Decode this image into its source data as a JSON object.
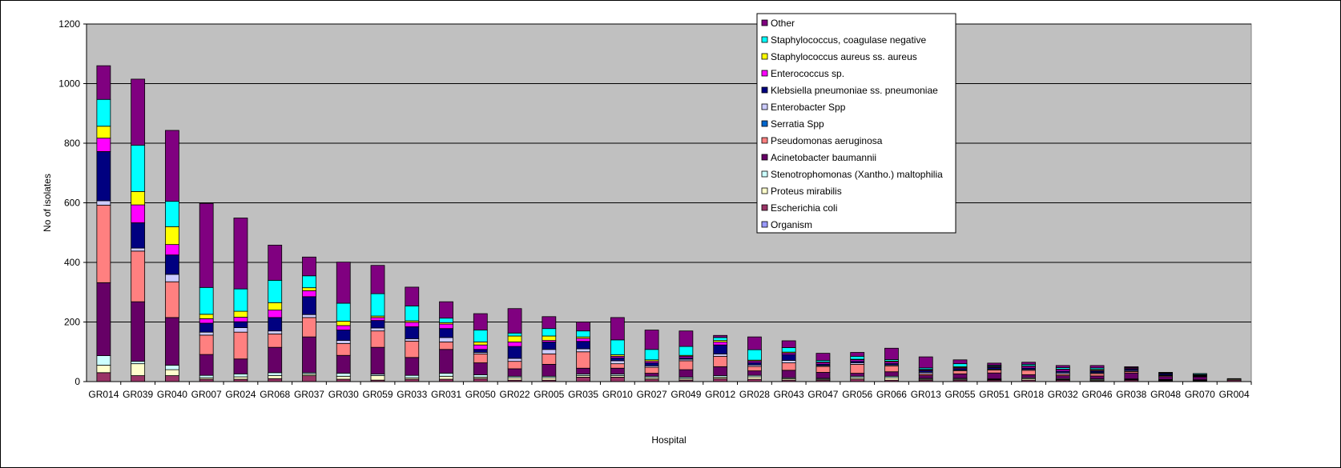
{
  "chart_data": {
    "type": "bar",
    "stacked": true,
    "xlabel": "Hospital",
    "ylabel": "No of isolates",
    "ylim": [
      0,
      1200
    ],
    "yticks": [
      0,
      200,
      400,
      600,
      800,
      1000,
      1200
    ],
    "grid": true,
    "legend_position": "top-right",
    "categories": [
      "GR014",
      "GR039",
      "GR040",
      "GR007",
      "GR024",
      "GR068",
      "GR037",
      "GR030",
      "GR059",
      "GR033",
      "GR031",
      "GR050",
      "GR022",
      "GR005",
      "GR035",
      "GR010",
      "GR027",
      "GR049",
      "GR012",
      "GR028",
      "GR043",
      "GR047",
      "GR056",
      "GR066",
      "GR013",
      "GR055",
      "GR051",
      "GR018",
      "GR032",
      "GR046",
      "GR038",
      "GR048",
      "GR070",
      "GR004"
    ],
    "series": [
      {
        "name": "Escherichia coli",
        "color": "#993366",
        "values": [
          30,
          20,
          20,
          8,
          8,
          10,
          20,
          8,
          5,
          8,
          8,
          10,
          5,
          5,
          15,
          15,
          8,
          5,
          10,
          8,
          5,
          5,
          8,
          5,
          5,
          5,
          5,
          5,
          5,
          3,
          5,
          3,
          2,
          5
        ]
      },
      {
        "name": "Proteus mirabilis",
        "color": "#FFFFCC",
        "values": [
          25,
          40,
          20,
          5,
          8,
          10,
          5,
          10,
          15,
          5,
          10,
          5,
          8,
          8,
          5,
          5,
          5,
          5,
          5,
          8,
          5,
          3,
          5,
          8,
          3,
          3,
          2,
          5,
          2,
          3,
          2,
          2,
          2,
          3
        ]
      },
      {
        "name": "Stenotrophomonas (Xantho.) maltophilia",
        "color": "#CCFFFF",
        "values": [
          32,
          8,
          15,
          8,
          10,
          10,
          5,
          10,
          5,
          8,
          10,
          8,
          5,
          5,
          5,
          5,
          5,
          5,
          5,
          5,
          3,
          3,
          5,
          5,
          3,
          3,
          2,
          3,
          3,
          3,
          2,
          2,
          2,
          0
        ]
      },
      {
        "name": "Acinetobacter baumannii",
        "color": "#660066",
        "values": [
          245,
          200,
          160,
          70,
          50,
          85,
          120,
          60,
          90,
          60,
          80,
          40,
          25,
          40,
          20,
          20,
          10,
          25,
          30,
          15,
          25,
          20,
          10,
          15,
          10,
          15,
          20,
          10,
          10,
          10,
          20,
          10,
          10,
          0
        ]
      },
      {
        "name": "Pseudomonas aeruginosa",
        "color": "#FF8080",
        "values": [
          260,
          170,
          120,
          65,
          90,
          45,
          65,
          40,
          55,
          55,
          25,
          30,
          25,
          35,
          55,
          15,
          20,
          30,
          35,
          15,
          25,
          20,
          30,
          20,
          5,
          10,
          10,
          15,
          5,
          8,
          5,
          3,
          2,
          2
        ]
      },
      {
        "name": "Serratia Spp",
        "color": "#0066CC",
        "values": [
          0,
          0,
          0,
          0,
          0,
          0,
          0,
          0,
          0,
          0,
          0,
          0,
          0,
          0,
          0,
          0,
          0,
          0,
          0,
          0,
          0,
          0,
          0,
          0,
          0,
          0,
          0,
          0,
          0,
          0,
          0,
          0,
          0,
          0
        ]
      },
      {
        "name": "Enterobacter Spp",
        "color": "#CCCCFF",
        "values": [
          15,
          10,
          25,
          10,
          15,
          10,
          10,
          10,
          10,
          8,
          15,
          5,
          10,
          15,
          10,
          10,
          5,
          5,
          8,
          5,
          8,
          3,
          5,
          3,
          5,
          3,
          3,
          3,
          5,
          3,
          3,
          2,
          2,
          0
        ]
      },
      {
        "name": "Klebsiella pneumoniae ss. pneumoniae",
        "color": "#000080",
        "values": [
          165,
          85,
          65,
          30,
          20,
          45,
          60,
          35,
          25,
          40,
          30,
          10,
          40,
          25,
          25,
          10,
          10,
          5,
          30,
          8,
          20,
          5,
          5,
          5,
          5,
          5,
          5,
          5,
          5,
          5,
          5,
          5,
          2,
          0
        ]
      },
      {
        "name": "Enterococcus sp.",
        "color": "#FF00FF",
        "values": [
          45,
          60,
          35,
          15,
          15,
          25,
          20,
          15,
          10,
          15,
          15,
          15,
          15,
          5,
          10,
          5,
          5,
          5,
          10,
          5,
          5,
          5,
          5,
          5,
          3,
          3,
          3,
          5,
          5,
          3,
          3,
          2,
          2,
          0
        ]
      },
      {
        "name": "Staphylococcus aureus ss. aureus",
        "color": "#FFFF00",
        "values": [
          40,
          45,
          60,
          15,
          20,
          25,
          10,
          15,
          5,
          5,
          5,
          10,
          20,
          15,
          5,
          5,
          5,
          3,
          5,
          3,
          3,
          2,
          2,
          3,
          2,
          3,
          2,
          2,
          2,
          3,
          2,
          2,
          0,
          0
        ]
      },
      {
        "name": "Staphylococcus, coagulase negative",
        "color": "#00FFFF",
        "values": [
          90,
          155,
          85,
          90,
          75,
          75,
          40,
          60,
          75,
          50,
          15,
          40,
          10,
          25,
          20,
          50,
          35,
          30,
          10,
          35,
          15,
          5,
          10,
          5,
          5,
          10,
          3,
          5,
          5,
          5,
          0,
          0,
          3,
          0
        ]
      },
      {
        "name": "Other",
        "color": "#800080",
        "values": [
          113,
          222,
          238,
          282,
          238,
          118,
          63,
          138,
          95,
          63,
          55,
          55,
          82,
          40,
          30,
          75,
          65,
          52,
          7,
          43,
          23,
          24,
          13,
          38,
          37,
          13,
          7,
          7,
          7,
          8,
          3,
          0,
          0,
          0
        ]
      },
      {
        "name": "Organism",
        "color": "#9999FF",
        "values": [
          0,
          0,
          0,
          0,
          0,
          0,
          0,
          0,
          0,
          0,
          0,
          0,
          0,
          0,
          0,
          0,
          0,
          0,
          0,
          0,
          0,
          0,
          0,
          0,
          0,
          0,
          0,
          0,
          0,
          0,
          0,
          0,
          0,
          0
        ]
      }
    ],
    "legend_order": [
      "Other",
      "Staphylococcus, coagulase negative",
      "Staphylococcus aureus ss. aureus",
      "Enterococcus sp.",
      "Klebsiella pneumoniae ss. pneumoniae",
      "Enterobacter Spp",
      "Serratia Spp",
      "Pseudomonas aeruginosa",
      "Acinetobacter baumannii",
      "Stenotrophomonas (Xantho.) maltophilia",
      "Proteus mirabilis",
      "Escherichia coli",
      "Organism"
    ],
    "plot_background": "#C0C0C0"
  }
}
